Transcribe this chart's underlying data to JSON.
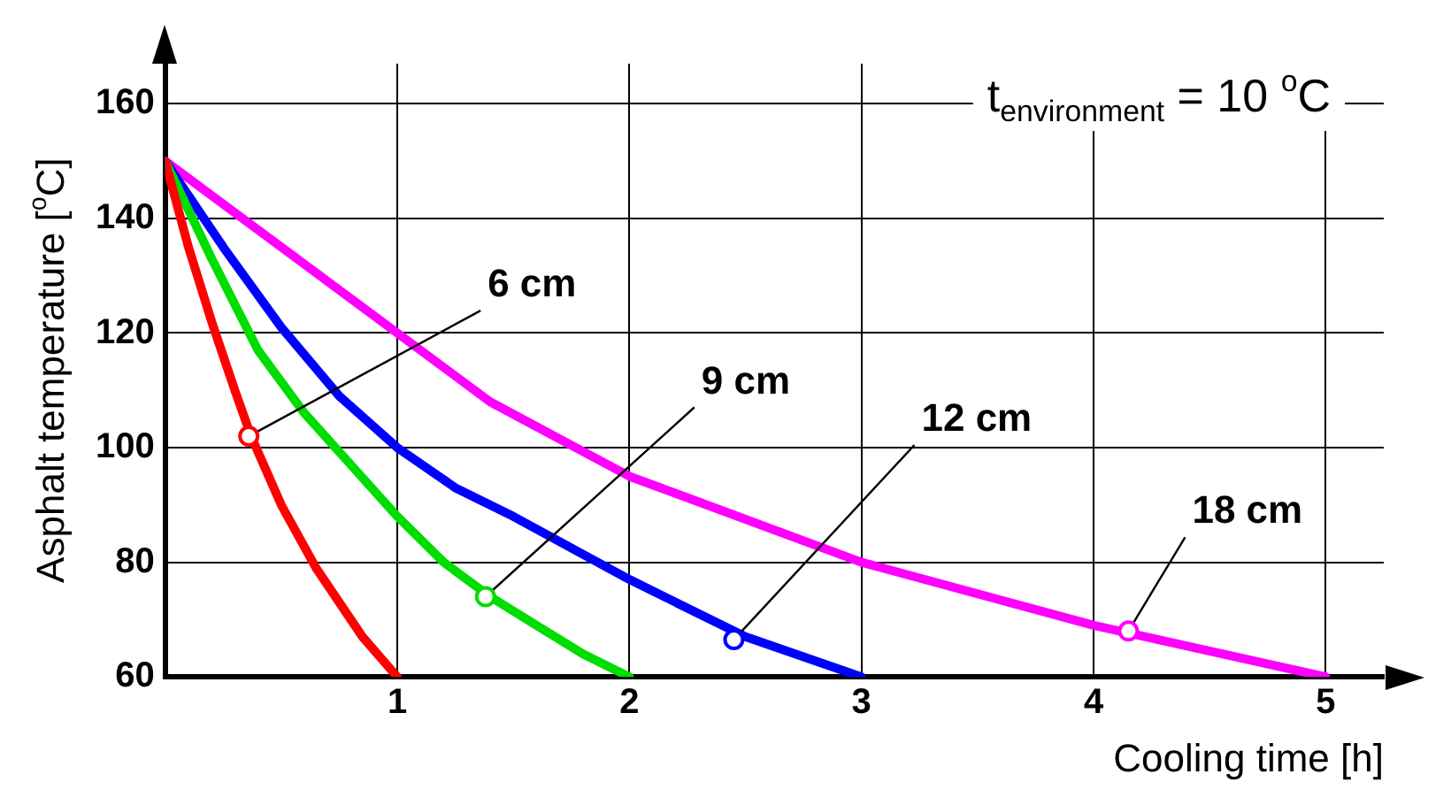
{
  "chart_data": {
    "type": "line",
    "xlabel": "Cooling time [h]",
    "ylabel": "Asphalt temperature [$^{o}$C]",
    "xlim": [
      0,
      5.25
    ],
    "ylim": [
      60,
      167
    ],
    "xticks": [
      1,
      2,
      3,
      4,
      5
    ],
    "yticks": [
      60,
      80,
      100,
      120,
      140,
      160
    ],
    "grid": true,
    "marker": "none",
    "line_style": "solid",
    "series": [
      {
        "color": "#ff0000",
        "x": [
          0,
          0.1,
          0.2,
          0.3,
          0.37,
          0.5,
          0.65,
          0.85,
          1
        ],
        "values": [
          150,
          135,
          122,
          110,
          102,
          90,
          79,
          67,
          60
        ]
      },
      {
        "color": "#00dd00",
        "x": [
          0,
          0.2,
          0.4,
          0.6,
          0.8,
          1,
          1.2,
          1.4,
          1.6,
          1.8,
          2
        ],
        "values": [
          150,
          133,
          117,
          106,
          97,
          88,
          80,
          74,
          69,
          64,
          60
        ]
      },
      {
        "color": "#0000ff",
        "x": [
          0,
          0.25,
          0.5,
          0.75,
          1,
          1.25,
          1.5,
          2,
          2.5,
          3
        ],
        "values": [
          150,
          135,
          121,
          109,
          100,
          93,
          88,
          77,
          67,
          60
        ]
      },
      {
        "color": "#ff00ff",
        "x": [
          0,
          0.5,
          1,
          1.4,
          2,
          3,
          4,
          5
        ],
        "values": [
          150,
          135,
          120,
          108,
          95,
          80,
          69,
          60
        ]
      }
    ],
    "annotations": [
      "t$_{environment}$ = 10 $^{o}$C",
      {
        "text": "6 cm",
        "x": 0.36,
        "y": 102
      },
      {
        "text": "9 cm",
        "x": 1.38,
        "y": 74
      },
      {
        "text": "12 cm",
        "x": 2.45,
        "y": 66.5
      },
      {
        "text": "18 cm",
        "x": 4.15,
        "y": 68
      }
    ]
  }
}
